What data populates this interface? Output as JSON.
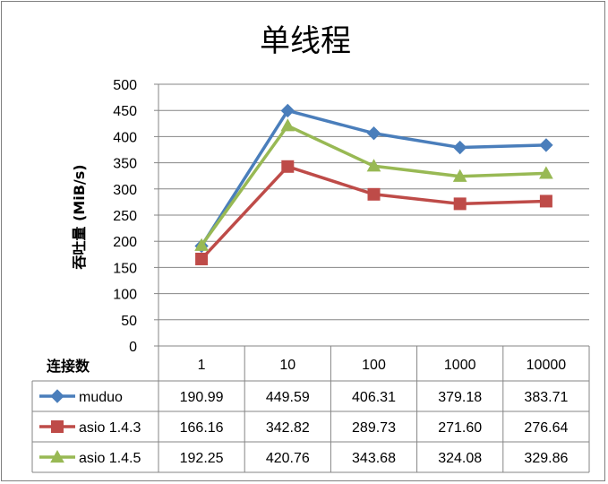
{
  "chart_data": {
    "type": "line",
    "title": "单线程",
    "ylabel": "吞吐量 (MiB/s)",
    "xlabel": "连接数",
    "categories": [
      "1",
      "10",
      "100",
      "1000",
      "10000"
    ],
    "ylim": [
      0,
      500
    ],
    "yticks": [
      0,
      50,
      100,
      150,
      200,
      250,
      300,
      350,
      400,
      450,
      500
    ],
    "grid": true,
    "legend": "data-table-left",
    "series": [
      {
        "name": "muduo",
        "values": [
          190.99,
          449.59,
          406.31,
          379.18,
          383.71
        ],
        "labels": [
          "190.99",
          "449.59",
          "406.31",
          "379.18",
          "383.71"
        ],
        "color": "#4a7ebb",
        "marker": "diamond"
      },
      {
        "name": "asio 1.4.3",
        "values": [
          166.16,
          342.82,
          289.73,
          271.6,
          276.64
        ],
        "labels": [
          "166.16",
          "342.82",
          "289.73",
          "271.60",
          "276.64"
        ],
        "color": "#be4b48",
        "marker": "square"
      },
      {
        "name": "asio 1.4.5",
        "values": [
          192.25,
          420.76,
          343.68,
          324.08,
          329.86
        ],
        "labels": [
          "192.25",
          "420.76",
          "343.68",
          "324.08",
          "329.86"
        ],
        "color": "#98b954",
        "marker": "triangle"
      }
    ]
  }
}
